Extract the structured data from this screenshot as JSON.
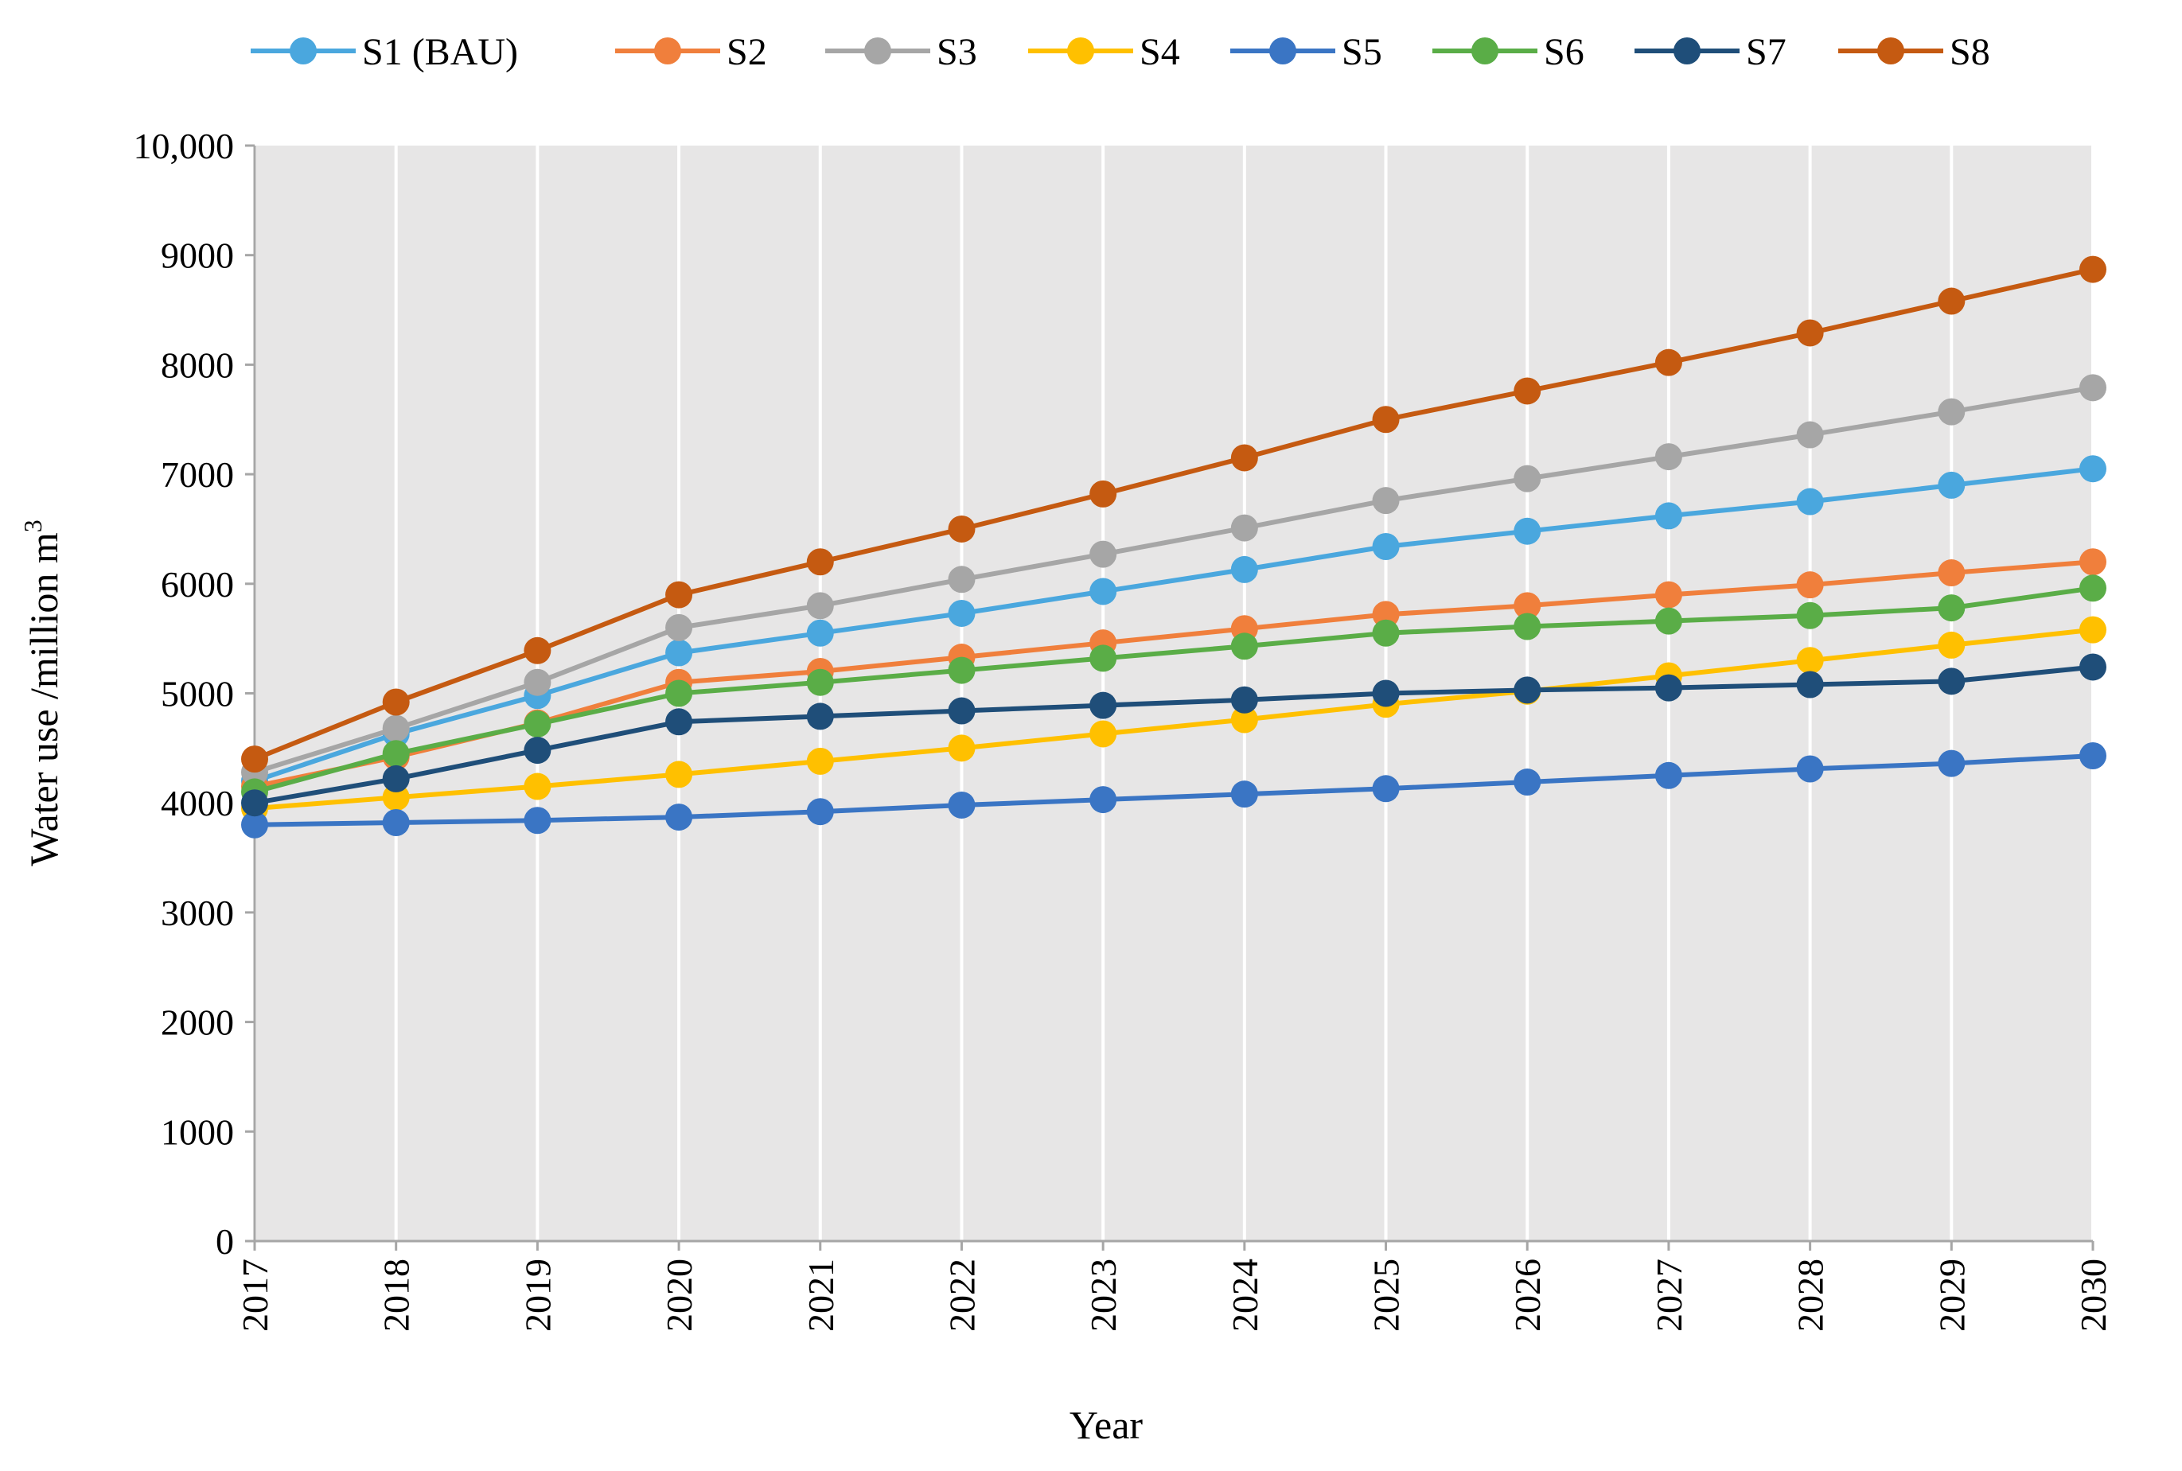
{
  "chart_data": {
    "type": "line",
    "title": "",
    "xlabel": "Year",
    "ylabel": "Water use /million m",
    "ylabel_superscript": "3",
    "ylim": [
      0,
      10000
    ],
    "yticks": [
      0,
      1000,
      2000,
      3000,
      4000,
      5000,
      6000,
      7000,
      8000,
      9000,
      10000
    ],
    "ytick_labels": [
      "0",
      "1000",
      "2000",
      "3000",
      "4000",
      "5000",
      "6000",
      "7000",
      "8000",
      "9000",
      "10,000"
    ],
    "grid": true,
    "legend_position": "top",
    "x": [
      "2017",
      "2018",
      "2019",
      "2020",
      "2021",
      "2022",
      "2023",
      "2024",
      "2025",
      "2026",
      "2027",
      "2028",
      "2029",
      "2030"
    ],
    "series": [
      {
        "name": "S1 (BAU)",
        "color": "#4aa7de",
        "values": [
          4200,
          4630,
          4980,
          5370,
          5550,
          5730,
          5930,
          6130,
          6340,
          6480,
          6620,
          6750,
          6900,
          7050
        ]
      },
      {
        "name": "S2",
        "color": "#f07f3c",
        "values": [
          4150,
          4420,
          4730,
          5100,
          5200,
          5330,
          5460,
          5590,
          5720,
          5800,
          5900,
          5990,
          6100,
          6200
        ]
      },
      {
        "name": "S3",
        "color": "#a6a6a6",
        "values": [
          4280,
          4680,
          5100,
          5600,
          5800,
          6040,
          6270,
          6510,
          6760,
          6960,
          7160,
          7360,
          7570,
          7790
        ]
      },
      {
        "name": "S4",
        "color": "#ffc000",
        "values": [
          3950,
          4050,
          4150,
          4260,
          4380,
          4500,
          4630,
          4760,
          4900,
          5020,
          5160,
          5300,
          5440,
          5580
        ]
      },
      {
        "name": "S5",
        "color": "#3a75c4",
        "values": [
          3800,
          3820,
          3840,
          3870,
          3920,
          3980,
          4030,
          4080,
          4130,
          4190,
          4250,
          4310,
          4360,
          4430
        ]
      },
      {
        "name": "S6",
        "color": "#5aad47",
        "values": [
          4100,
          4450,
          4720,
          5000,
          5100,
          5210,
          5320,
          5430,
          5550,
          5610,
          5660,
          5710,
          5780,
          5960
        ]
      },
      {
        "name": "S7",
        "color": "#1f4e79",
        "values": [
          4000,
          4220,
          4480,
          4740,
          4790,
          4840,
          4890,
          4940,
          5000,
          5030,
          5050,
          5080,
          5110,
          5240
        ]
      },
      {
        "name": "S8",
        "color": "#c55a11",
        "values": [
          4400,
          4920,
          5390,
          5900,
          6200,
          6500,
          6820,
          7150,
          7500,
          7760,
          8020,
          8290,
          8580,
          8870
        ]
      }
    ]
  }
}
